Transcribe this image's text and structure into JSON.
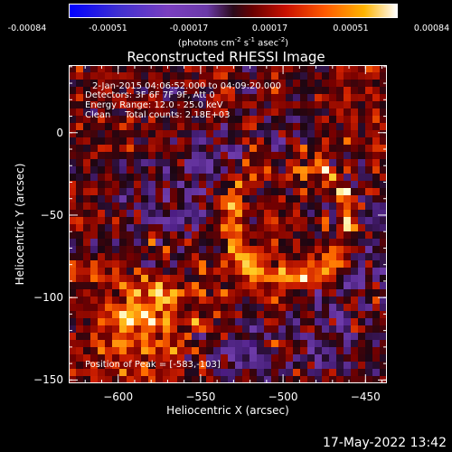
{
  "colorbar": {
    "ticks": [
      "-0.00084",
      "-0.00051",
      "-0.00017",
      "0.00017",
      "0.00051",
      "0.00084"
    ],
    "unit_label": "(photons cm",
    "unit_exp1": "-2",
    "unit_mid1": " s",
    "unit_exp2": "-1",
    "unit_mid2": " asec",
    "unit_exp3": "-2",
    "unit_close": ")"
  },
  "chart_data": {
    "type": "heatmap",
    "title": "Reconstructed RHESSI Image",
    "xlabel": "Heliocentric X (arcsec)",
    "ylabel": "Heliocentric Y (arcsec)",
    "xlim": [
      -630,
      -437
    ],
    "ylim": [
      -152,
      41
    ],
    "x_ticks": [
      -600,
      -550,
      -500,
      -450
    ],
    "y_ticks": [
      0,
      -50,
      -100,
      -150
    ],
    "x_tick_labels": [
      "−600",
      "−550",
      "−500",
      "−450"
    ],
    "y_tick_labels": [
      "0",
      "−50",
      "−100",
      "−150"
    ],
    "color_range": [
      -0.00084,
      0.00084
    ],
    "peak": [
      -583,
      -103
    ],
    "annotations": {
      "time_range": "2-Jan-2015 04:06:52.000 to 04:09:20.000",
      "detectors": "Detectors: 3F 6F 7F 9F, Att 0",
      "energy": "Energy Range: 12.0 - 25.0 keV",
      "clean": "Clean     Total counts: 2.18E+03",
      "peak_text": "Position of Peak = [-583,-103]"
    }
  },
  "footer": {
    "timestamp": "17-May-2022 13:42"
  },
  "colors": {
    "background": "#000000",
    "axes": "#ffffff",
    "low": "#6b3aa8",
    "high": "#ffffff"
  }
}
